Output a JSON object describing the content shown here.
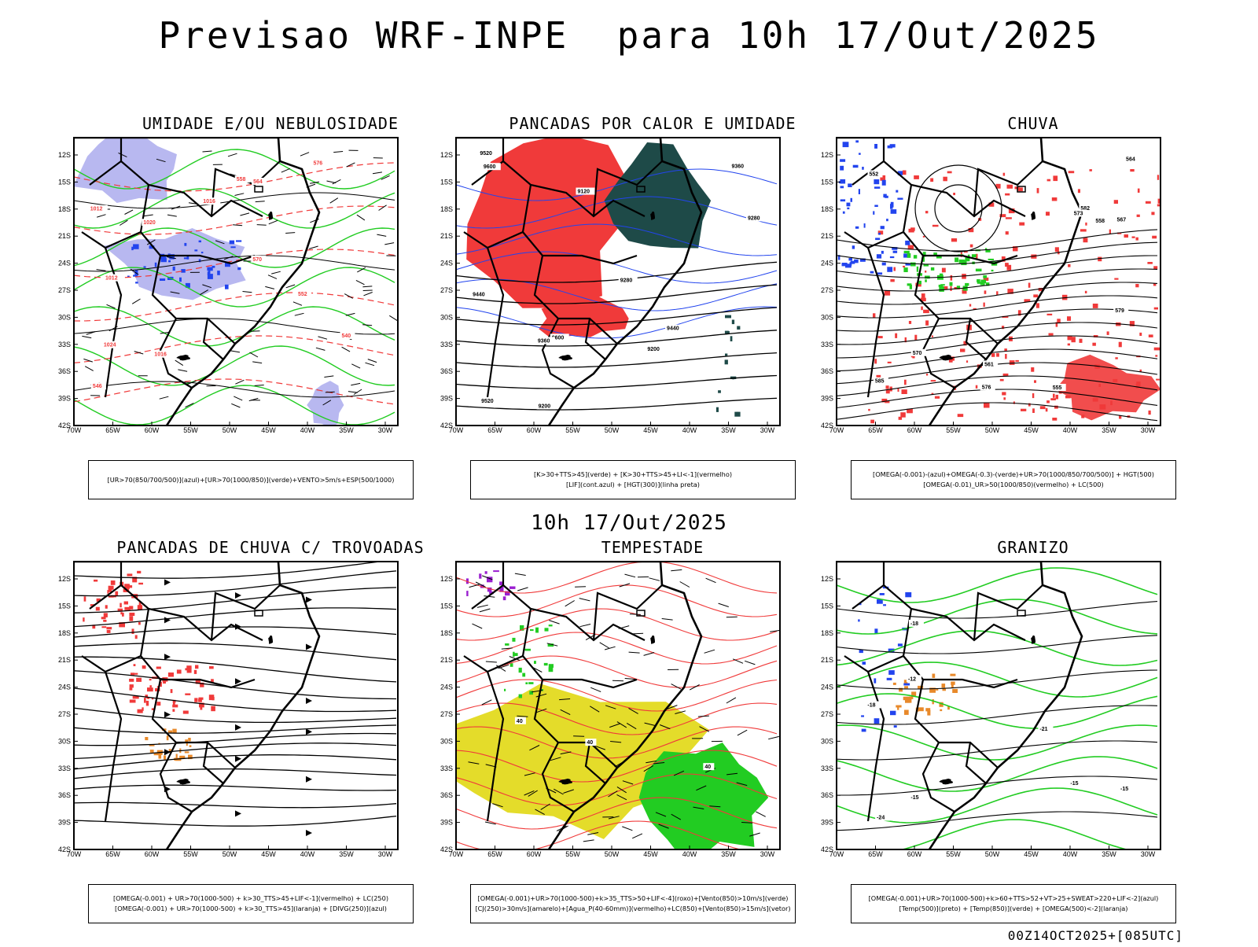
{
  "main_title": "Previsao WRF-INPE  para 10h 17/Out/2025",
  "mid_title": "10h 17/Out/2025",
  "footer": "00Z14OCT2025+[085UTC]",
  "lat_labels": [
    "12S",
    "15S",
    "18S",
    "21S",
    "24S",
    "27S",
    "30S",
    "33S",
    "36S",
    "39S",
    "42S"
  ],
  "lon_labels": [
    "70W",
    "65W",
    "60W",
    "55W",
    "50W",
    "45W",
    "40W",
    "35W",
    "30W"
  ],
  "colors": {
    "red": "#f03a3a",
    "green": "#22cc22",
    "blue": "#2244ee",
    "lightblue": "#b8b8f0",
    "darkgreen": "#1e4a48",
    "yellow": "#e4dc2a",
    "orange": "#e8892a",
    "purple": "#9a1ed0"
  },
  "panels": [
    {
      "title": "UMIDADE E/OU NEBULOSIDADE",
      "legend": [
        "[UR>70(850/700/500)](azul)+[UR>70(1000/850)](verde)+VENTO>5m/s+ESP(500/1000)"
      ],
      "contour_labels": [
        "1012",
        "1016",
        "1012",
        "1016",
        "1020",
        "1024",
        "576",
        "570",
        "564",
        "558",
        "552",
        "546",
        "540"
      ]
    },
    {
      "title": "PANCADAS POR CALOR E UMIDADE",
      "legend": [
        "[K>30+TTS>45](verde) + [K>30+TTS>45+LI<-1](vermelho)",
        "[LIF](cont.azul) + [HGT(300)](linha preta)"
      ],
      "contour_labels": [
        "9600",
        "9520",
        "9440",
        "9360",
        "9280",
        "9200",
        "9120",
        "9600",
        "9520",
        "9440",
        "9360",
        "9280",
        "9200"
      ]
    },
    {
      "title": "CHUVA",
      "legend": [
        "[OMEGA(-0.001)-(azul)+OMEGA(-0.3)-(verde)+UR>70(1000/850/700/500)] + HGT(500)",
        "[OMEGA(-0.01)_UR>50(1000/850)(vermelho) + LC(500)"
      ],
      "contour_labels": [
        "585",
        "582",
        "579",
        "576",
        "573",
        "570",
        "567",
        "564",
        "561",
        "558",
        "555",
        "552"
      ]
    },
    {
      "title": "PANCADAS DE CHUVA C/ TROVOADAS",
      "legend": [
        "[OMEGA(-0.001) + UR>70(1000-500) + k>30_TTS>45+LIF<-1](vermelho) + LC(250)",
        "[OMEGA(-0.001) + UR>70(1000-500) + k>30_TTS>45](laranja) + [DIVG(250)](azul)"
      ],
      "contour_labels": []
    },
    {
      "title": "TEMPESTADE",
      "legend": [
        "[OMEGA(-0.001)+UR>70(1000-500)+k>35_TTS>50+LIF<-4](roxo)+[Vento(850)>10m/s](verde)",
        "[CJ(250)>30m/s](amarelo)+[Agua_P(40-60mm)](vermelho)+LC(850)+[Vento(850)>15m/s](vetor)"
      ],
      "contour_labels": [
        "40",
        "40",
        "40"
      ]
    },
    {
      "title": "GRANIZO",
      "legend": [
        "[OMEGA(-0.001)+UR>70(1000-500)+k>60+TTS>52+VT>25+SWEAT>220+LIF<-2](azul)",
        "[Temp(500)](preto) + [Temp(850)](verde) + [OMEGA(500)<-2](laranja)"
      ],
      "contour_labels": [
        "-12",
        "-15",
        "-15",
        "-18",
        "-18",
        "-15",
        "-21",
        "-24"
      ]
    }
  ]
}
